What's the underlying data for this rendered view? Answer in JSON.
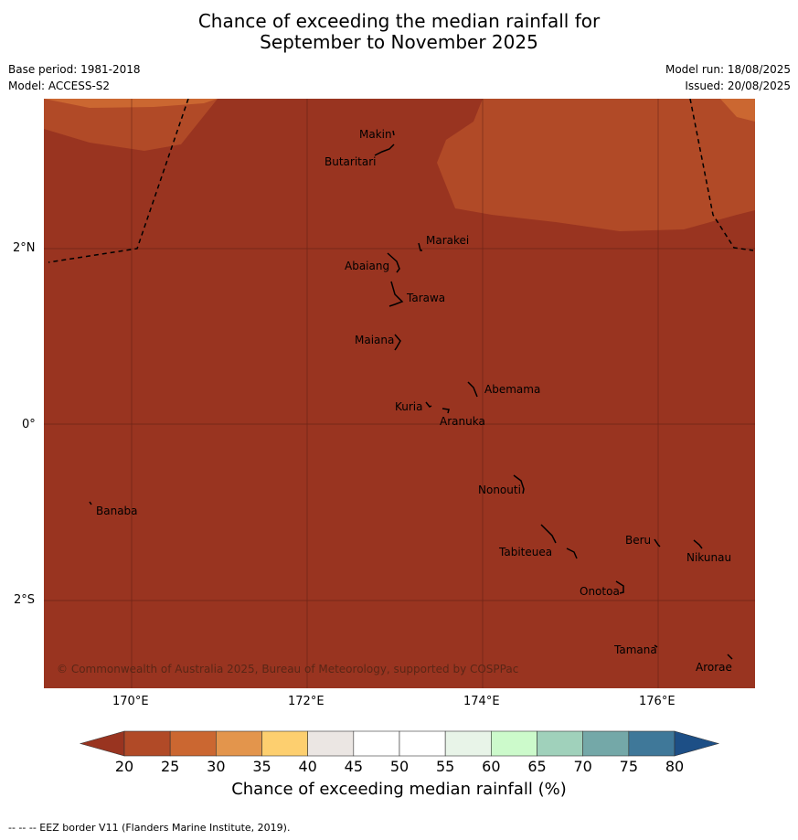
{
  "title_line1": "Chance of exceeding the median rainfall for",
  "title_line2": "September to November 2025",
  "base_period": "Base period: 1981-2018",
  "model": "Model: ACCESS-S2",
  "model_run": "Model run: 18/08/2025",
  "issued": "Issued: 20/08/2025",
  "axes": {
    "lon_labels": [
      "170°E",
      "172°E",
      "174°E",
      "176°E"
    ],
    "lat_labels": [
      "2°N",
      "0°",
      "2°S"
    ]
  },
  "places": [
    "Makin",
    "Butaritari",
    "Marakei",
    "Abaiang",
    "Tarawa",
    "Maiana",
    "Abemama",
    "Kuria",
    "Aranuka",
    "Nonouti",
    "Banaba",
    "Beru",
    "Nikunau",
    "Tabiteuea",
    "Onotoa",
    "Tamana",
    "Arorae"
  ],
  "copyright": "© Commonwealth of Australia 2025, Bureau of Meteorology, supported by COSPPac",
  "colorbar": {
    "ticks": [
      "20",
      "25",
      "30",
      "35",
      "40",
      "45",
      "50",
      "55",
      "60",
      "65",
      "70",
      "75",
      "80"
    ],
    "colors": [
      "#b14a27",
      "#cb6731",
      "#e3954c",
      "#fdcf6f",
      "#ebe6e3",
      "#ffffff",
      "#ffffff",
      "#e8f4e8",
      "#ccfacb",
      "#a0d1bb",
      "#74a8a8",
      "#3f7899"
    ],
    "under_color": "#993420",
    "over_color": "#1d4f86",
    "label": "Chance of exceeding median rainfall (%)"
  },
  "footer": "--  --  -- EEZ border V11 (Flanders Marine Institute, 2019)."
}
